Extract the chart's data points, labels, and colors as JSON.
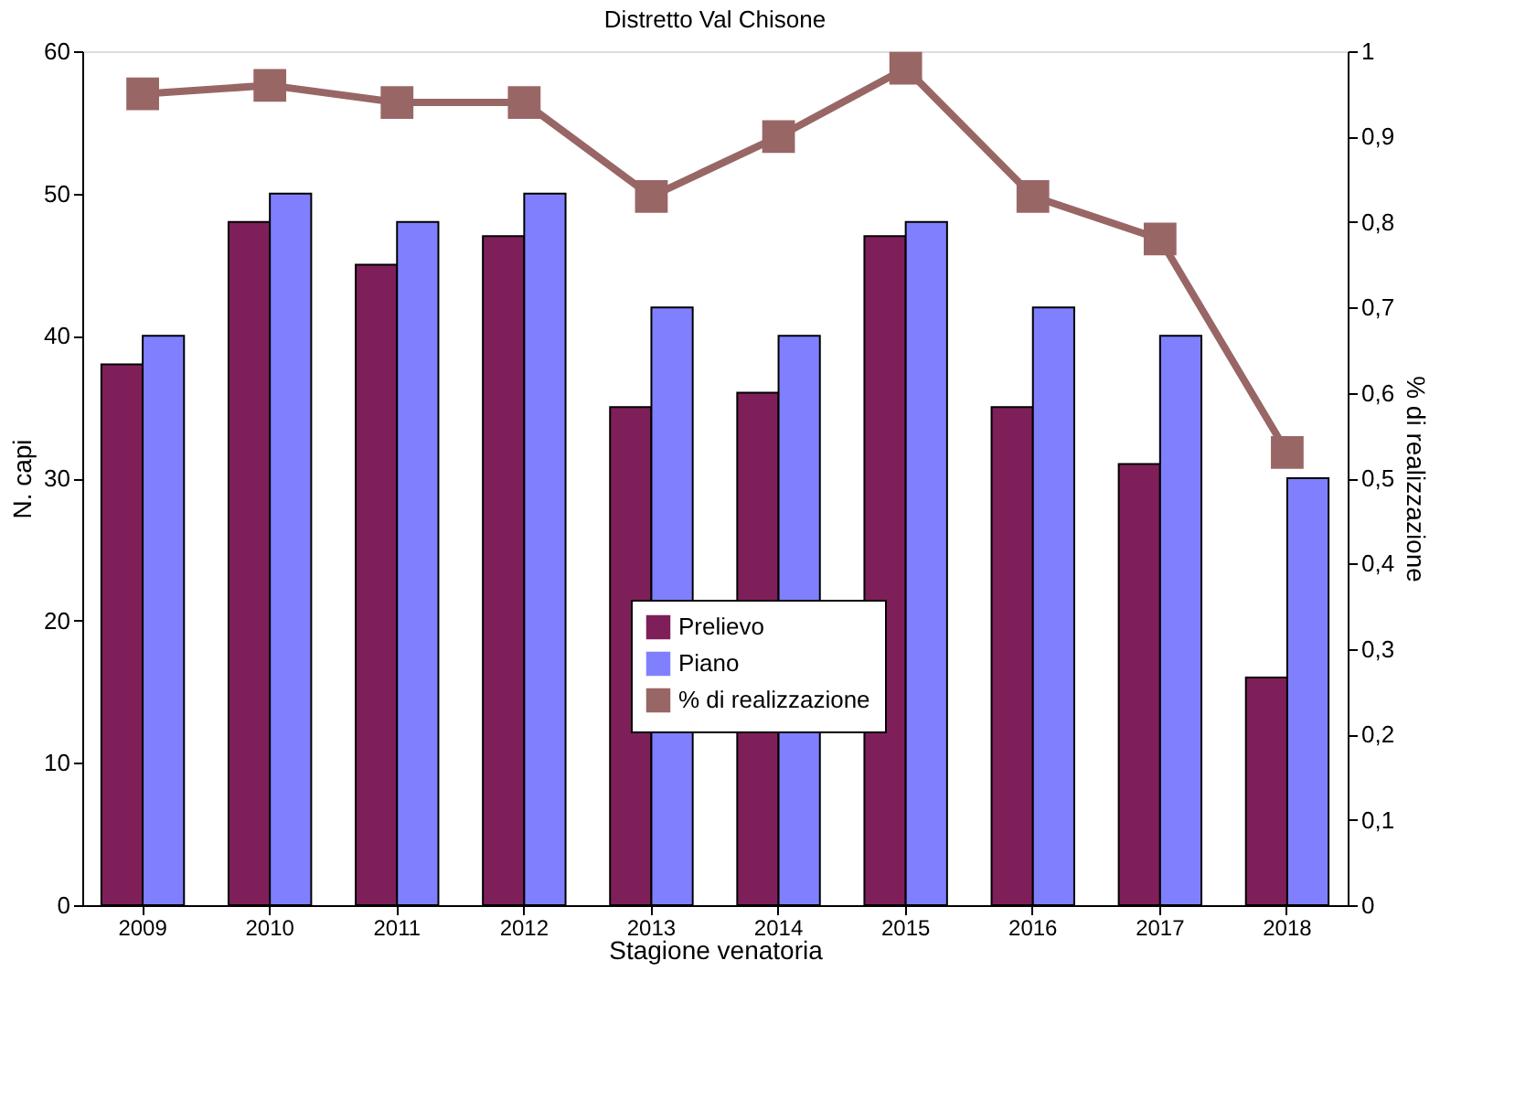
{
  "chart_data": {
    "type": "bar",
    "title": "Distretto Val Chisone",
    "xlabel": "Stagione venatoria",
    "ylabel": "N. capi",
    "y2label": "% di realizzazione",
    "categories": [
      "2009",
      "2010",
      "2011",
      "2012",
      "2013",
      "2014",
      "2015",
      "2016",
      "2017",
      "2018"
    ],
    "series": [
      {
        "name": "Prelievo",
        "color": "#7f1f5a",
        "values": [
          38,
          48,
          45,
          47,
          35,
          36,
          47,
          35,
          31,
          16
        ]
      },
      {
        "name": "Piano",
        "color": "#8080ff",
        "values": [
          40,
          50,
          48,
          50,
          42,
          40,
          48,
          42,
          40,
          30
        ]
      },
      {
        "name": "% di realizzazione",
        "type": "line",
        "axis": "y2",
        "color": "#996666",
        "marker": "square",
        "line_style": "solid",
        "values": [
          0.95,
          0.96,
          0.94,
          0.94,
          0.83,
          0.9,
          0.98,
          0.83,
          0.78,
          0.53
        ]
      }
    ],
    "ylim": [
      0,
      60
    ],
    "yticks": [
      0,
      10,
      20,
      30,
      40,
      50,
      60
    ],
    "y2lim": [
      0,
      1
    ],
    "y2ticks": [
      0,
      {
        "value": 0.1,
        "label": "0,1"
      },
      {
        "value": 0.2,
        "label": "0,2"
      },
      {
        "value": 0.3,
        "label": "0,3"
      },
      {
        "value": 0.4,
        "label": "0,4"
      },
      {
        "value": 0.5,
        "label": "0,5"
      },
      {
        "value": 0.6,
        "label": "0,6"
      },
      {
        "value": 0.7,
        "label": "0,7"
      },
      {
        "value": 0.8,
        "label": "0,8"
      },
      {
        "value": 0.9,
        "label": "0,9"
      },
      1
    ],
    "grid": false,
    "legend": "bottom"
  }
}
